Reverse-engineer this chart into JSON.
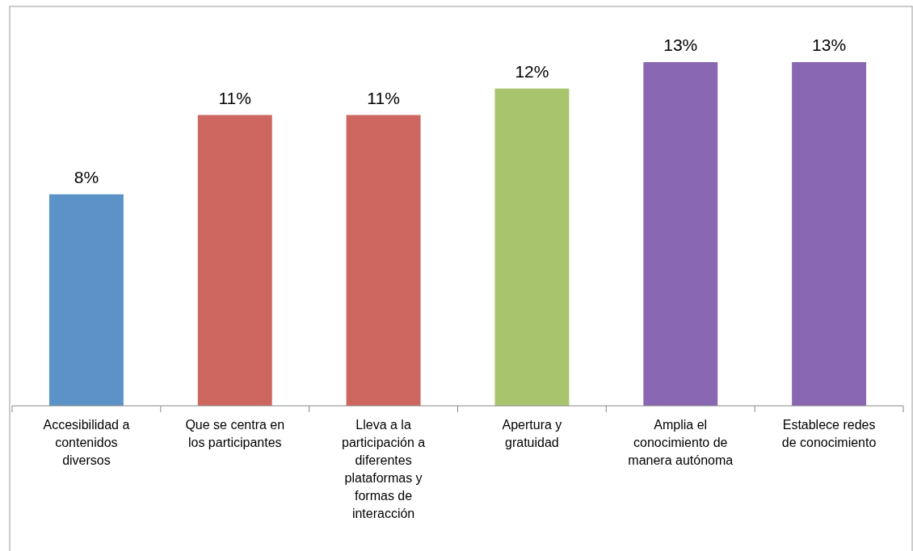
{
  "chart_data": {
    "type": "bar",
    "categories": [
      "Accesibilidad a contenidos diversos",
      "Que se centra en los participantes",
      "Lleva a la participación a diferentes plataformas y formas de interacción",
      "Apertura y gratuidad",
      "Amplia el conocimiento de manera autónoma",
      "Establece redes de conocimiento"
    ],
    "values": [
      8,
      11,
      11,
      12,
      13,
      13
    ],
    "colors": [
      "#5b93c8",
      "#cd665f",
      "#cd665f",
      "#a8c46c",
      "#8a67b2",
      "#8a67b2"
    ],
    "value_labels": [
      "8%",
      "11%",
      "11%",
      "12%",
      "13%",
      "13%"
    ]
  }
}
